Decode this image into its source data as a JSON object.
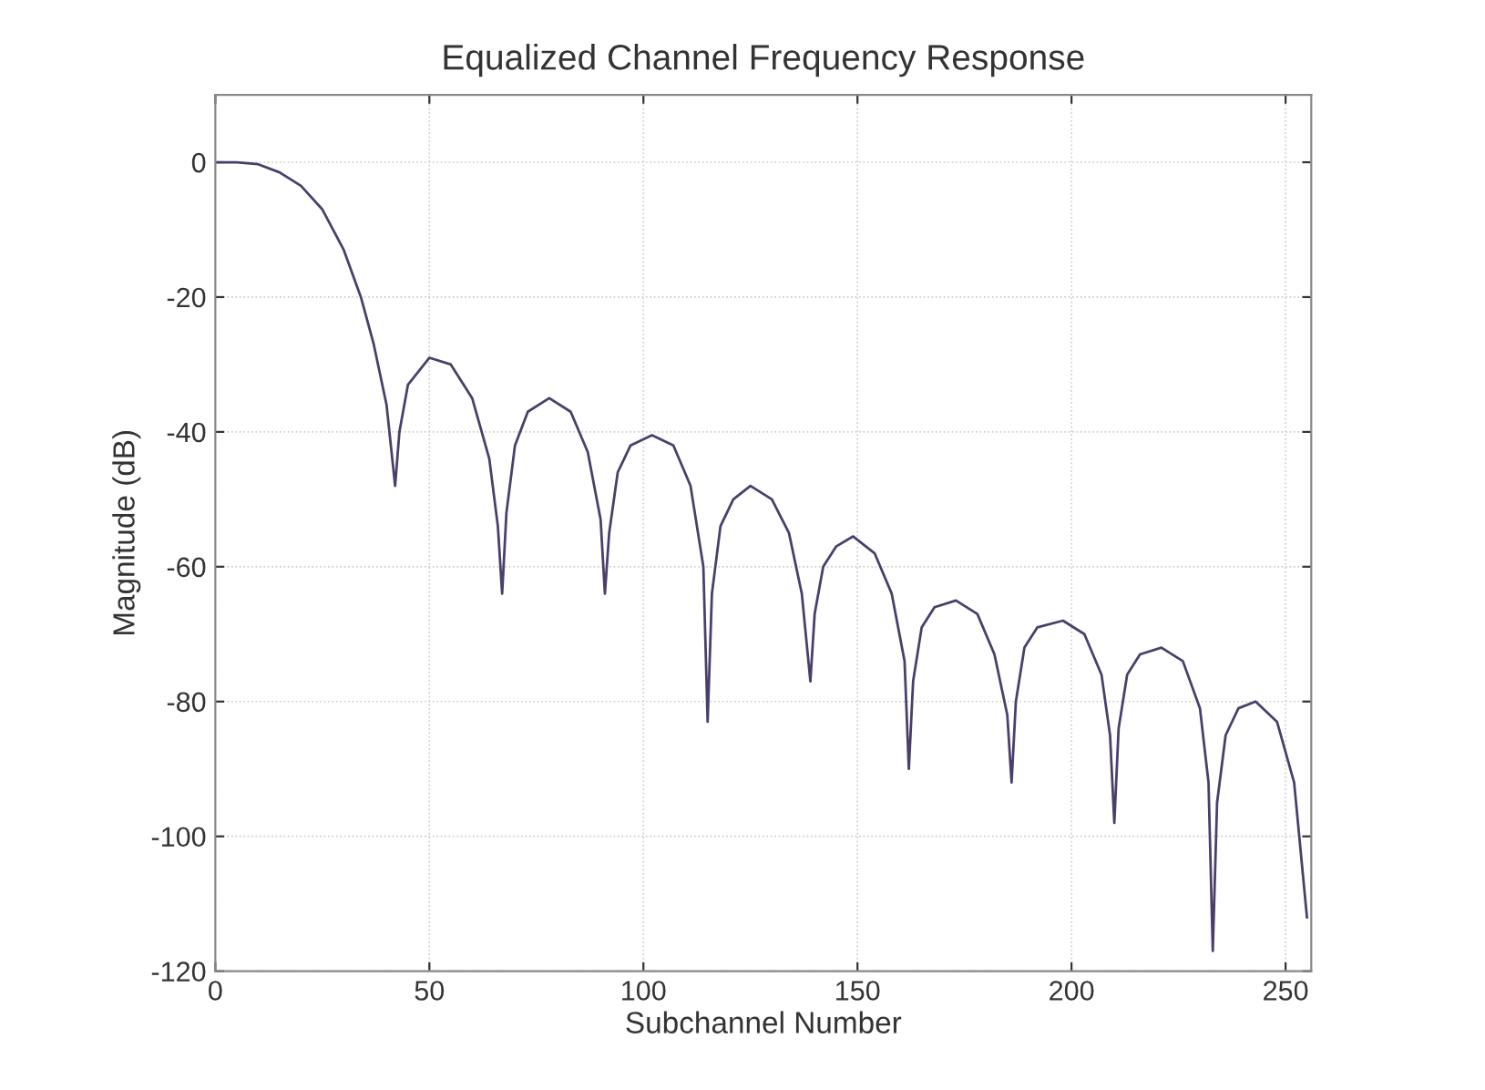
{
  "chart_data": {
    "type": "line",
    "title": "Equalized Channel Frequency Response",
    "xlabel": "Subchannel Number",
    "ylabel": "Magnitude (dB)",
    "x": [
      0,
      5,
      10,
      15,
      20,
      25,
      30,
      34,
      37,
      40,
      42,
      43,
      45,
      50,
      55,
      60,
      64,
      66,
      67,
      68,
      70,
      73,
      78,
      83,
      87,
      90,
      91,
      92,
      94,
      97,
      102,
      107,
      111,
      114,
      115,
      116,
      118,
      121,
      125,
      130,
      134,
      137,
      139,
      140,
      142,
      145,
      149,
      154,
      158,
      161,
      162,
      163,
      165,
      168,
      173,
      178,
      182,
      185,
      186,
      187,
      189,
      192,
      198,
      203,
      207,
      209,
      210,
      211,
      213,
      216,
      221,
      226,
      230,
      232,
      233,
      234,
      236,
      239,
      243,
      248,
      252,
      255
    ],
    "series": [
      {
        "color": "#4a3f6b",
        "values": [
          0,
          0,
          -0.3,
          -1.5,
          -3.5,
          -7,
          -13,
          -20,
          -27,
          -36,
          -48,
          -40,
          -33,
          -29,
          -30,
          -35,
          -44,
          -54,
          -64,
          -52,
          -42,
          -37,
          -35,
          -37,
          -43,
          -53,
          -64,
          -55,
          -46,
          -42,
          -40.5,
          -42,
          -48,
          -60,
          -83,
          -64,
          -54,
          -50,
          -48,
          -50,
          -55,
          -64,
          -77,
          -67,
          -60,
          -57,
          -55.5,
          -58,
          -64,
          -74,
          -90,
          -77,
          -69,
          -66,
          -65,
          -67,
          -73,
          -82,
          -92,
          -80,
          -72,
          -69,
          -68,
          -70,
          -76,
          -85,
          -98,
          -84,
          -76,
          -73,
          -72,
          -74,
          -81,
          -92,
          -117,
          -95,
          -85,
          -81,
          -80,
          -83,
          -92,
          -112
        ]
      }
    ],
    "xlim": [
      0,
      256
    ],
    "ylim": [
      -120,
      10
    ],
    "xticks": [
      0,
      50,
      100,
      150,
      200,
      250
    ],
    "yticks": [
      -120,
      -100,
      -80,
      -60,
      -40,
      -20,
      0
    ],
    "grid": true,
    "line_style": "solid"
  }
}
